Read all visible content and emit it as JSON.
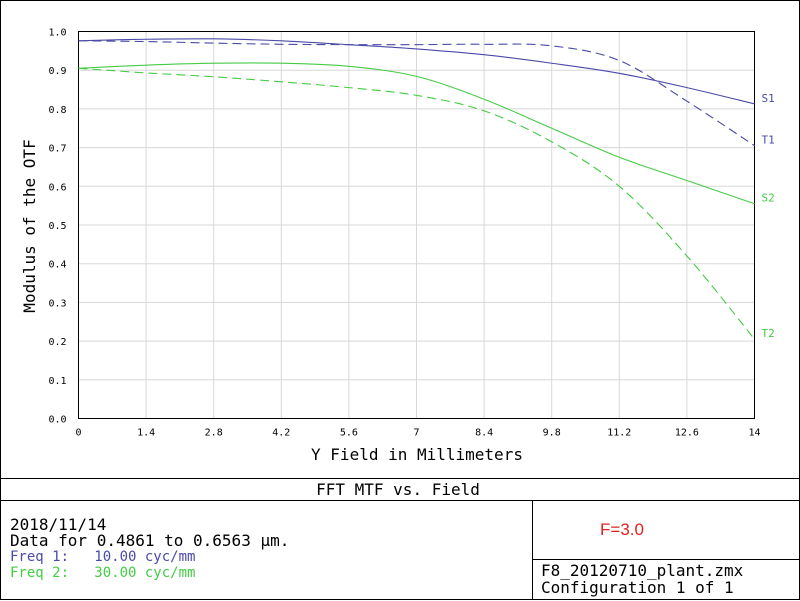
{
  "colors": {
    "freq1": "#4a4aa8",
    "freq2": "#44cc44",
    "annotation": "#e02020",
    "grid": "#d8d8d8",
    "frame": "#000000"
  },
  "chart_data": {
    "type": "line",
    "title": "FFT MTF vs. Field",
    "xlabel": "Y Field in Millimeters",
    "ylabel": "Modulus of the OTF",
    "xlim": [
      0,
      14
    ],
    "ylim": [
      0,
      1.0
    ],
    "x_ticks": [
      0,
      1.4,
      2.8,
      4.2,
      5.6,
      7,
      8.4,
      9.8,
      11.2,
      12.6,
      14
    ],
    "y_ticks": [
      0.0,
      0.1,
      0.2,
      0.3,
      0.4,
      0.5,
      0.6,
      0.7,
      0.8,
      0.9,
      1.0
    ],
    "x_tick_labels": [
      "0",
      "1.4",
      "2.8",
      "4.2",
      "5.6",
      "7",
      "8.4",
      "9.8",
      "11.2",
      "12.6",
      "14"
    ],
    "y_tick_labels": [
      "0.0",
      "0.1",
      "0.2",
      "0.3",
      "0.4",
      "0.5",
      "0.6",
      "0.7",
      "0.8",
      "0.9",
      "1.0"
    ],
    "grid": true,
    "series": [
      {
        "name": "S1",
        "freq": 1,
        "dash": false,
        "x": [
          0,
          1.4,
          2.8,
          4.2,
          5.6,
          7,
          8.4,
          9.8,
          11.2,
          12.6,
          14
        ],
        "y": [
          0.976,
          0.98,
          0.981,
          0.976,
          0.966,
          0.955,
          0.94,
          0.918,
          0.892,
          0.855,
          0.813
        ]
      },
      {
        "name": "T1",
        "freq": 1,
        "dash": true,
        "x": [
          0,
          1.4,
          2.8,
          4.2,
          5.6,
          7,
          8.4,
          9.8,
          11.2,
          12.6,
          14
        ],
        "y": [
          0.976,
          0.974,
          0.97,
          0.967,
          0.966,
          0.966,
          0.967,
          0.963,
          0.925,
          0.82,
          0.705
        ]
      },
      {
        "name": "S2",
        "freq": 2,
        "dash": false,
        "x": [
          0,
          1.4,
          2.8,
          4.2,
          5.6,
          7,
          8.4,
          9.8,
          11.2,
          12.6,
          14
        ],
        "y": [
          0.905,
          0.913,
          0.918,
          0.918,
          0.91,
          0.884,
          0.825,
          0.75,
          0.675,
          0.615,
          0.555
        ]
      },
      {
        "name": "T2",
        "freq": 2,
        "dash": true,
        "x": [
          0,
          1.4,
          2.8,
          4.2,
          5.6,
          7,
          8.4,
          9.8,
          11.2,
          12.6,
          14
        ],
        "y": [
          0.905,
          0.893,
          0.883,
          0.87,
          0.855,
          0.835,
          0.795,
          0.715,
          0.6,
          0.42,
          0.205
        ]
      }
    ]
  },
  "panel": {
    "date": "2018/11/14",
    "wavelength_line": "Data for 0.4861 to 0.6563 µm.",
    "freq1_line": "Freq 1:   10.00 cyc/mm",
    "freq2_line": "Freq 2:   30.00 cyc/mm",
    "annotation": "F=3.0",
    "filename": "F8_20120710_plant.zmx",
    "configuration": "Configuration 1 of 1"
  }
}
